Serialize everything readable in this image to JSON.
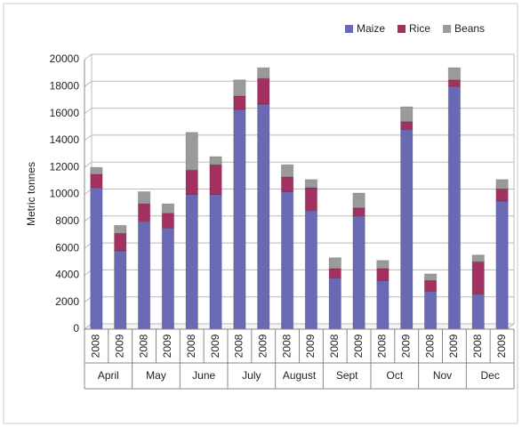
{
  "chart_data": {
    "type": "stacked-bar",
    "y_label": "Metric tonnes",
    "categories": [
      "2008",
      "2009",
      "2008",
      "2009",
      "2008",
      "2009",
      "2008",
      "2009",
      "2008",
      "2009",
      "2008",
      "2009",
      "2008",
      "2009",
      "2008",
      "2009",
      "2008",
      "2009"
    ],
    "groups": [
      "April",
      "May",
      "June",
      "July",
      "August",
      "Sept",
      "Oct",
      "Nov",
      "Dec"
    ],
    "series": [
      {
        "name": "Maize",
        "color": "#6a6ab4",
        "values": [
          10500,
          5800,
          8000,
          7500,
          10000,
          10000,
          16300,
          16700,
          10200,
          8800,
          3800,
          8400,
          3600,
          14800,
          2800,
          18000,
          2600,
          9500
        ]
      },
      {
        "name": "Rice",
        "color": "#a23060",
        "values": [
          1000,
          1300,
          1300,
          1100,
          1800,
          2200,
          1000,
          1900,
          1100,
          1700,
          700,
          600,
          900,
          600,
          800,
          500,
          2400,
          900
        ]
      },
      {
        "name": "Beans",
        "color": "#9a9a9a",
        "values": [
          500,
          600,
          900,
          700,
          2800,
          600,
          1200,
          800,
          900,
          600,
          800,
          1100,
          600,
          1100,
          500,
          900,
          500,
          700
        ]
      }
    ],
    "ylim": [
      0,
      20000
    ],
    "yticks": [
      0,
      2000,
      4000,
      6000,
      8000,
      10000,
      12000,
      14000,
      16000,
      18000,
      20000
    ],
    "grid": true,
    "legend": "top-right"
  }
}
